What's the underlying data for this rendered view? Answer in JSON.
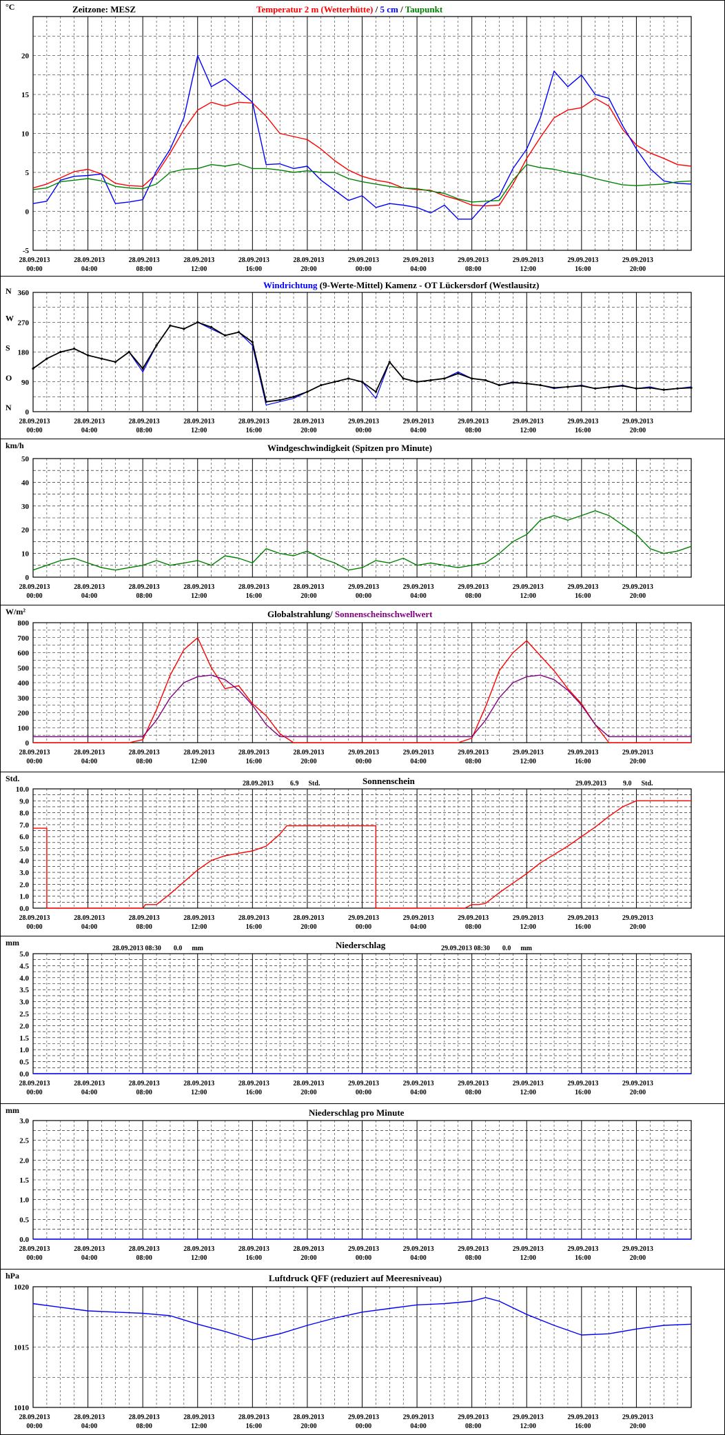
{
  "x_ticks": [
    {
      "date": "28.09.2013",
      "time": "00:00"
    },
    {
      "date": "28.09.2013",
      "time": "04:00"
    },
    {
      "date": "28.09.2013",
      "time": "08:00"
    },
    {
      "date": "28.09.2013",
      "time": "12:00"
    },
    {
      "date": "28.09.2013",
      "time": "16:00"
    },
    {
      "date": "28.09.2013",
      "time": "20:00"
    },
    {
      "date": "29.09.2013",
      "time": "00:00"
    },
    {
      "date": "29.09.2013",
      "time": "04:00"
    },
    {
      "date": "29.09.2013",
      "time": "08:00"
    },
    {
      "date": "29.09.2013",
      "time": "12:00"
    },
    {
      "date": "29.09.2013",
      "time": "16:00"
    },
    {
      "date": "29.09.2013",
      "time": "20:00"
    }
  ],
  "chart_data": [
    {
      "id": "temperature",
      "type": "line",
      "unit": "°C",
      "timezone_label": "Zeitzone: MESZ",
      "title_parts": [
        {
          "text": "Temperatur 2 m (Wetterhütte)",
          "color": "#ff0000"
        },
        {
          "text": "  /  ",
          "color": "#000000"
        },
        {
          "text": "5 cm",
          "color": "#0000ff"
        },
        {
          "text": " / ",
          "color": "#000000"
        },
        {
          "text": "Taupunkt",
          "color": "#008000"
        }
      ],
      "ylim": [
        -5,
        25
      ],
      "yticks": [
        -5,
        0,
        5,
        10,
        15,
        20
      ],
      "x_hours": [
        0,
        1,
        2,
        3,
        4,
        5,
        6,
        7,
        8,
        9,
        10,
        11,
        12,
        13,
        14,
        15,
        16,
        17,
        18,
        19,
        20,
        21,
        22,
        23,
        24,
        25,
        26,
        27,
        28,
        29,
        30,
        31,
        32,
        33,
        34,
        35,
        36,
        37,
        38,
        39,
        40,
        41,
        42,
        43,
        44,
        45,
        46,
        47,
        48
      ],
      "series": [
        {
          "name": "Temperatur 2 m (Wetterhütte)",
          "color": "#ff0000",
          "values": [
            3.0,
            3.5,
            4.3,
            5.1,
            5.4,
            4.8,
            3.6,
            3.3,
            3.2,
            4.8,
            7.5,
            10.5,
            13,
            14,
            13.5,
            14,
            13.9,
            12.2,
            10,
            9.6,
            9.2,
            8,
            6.5,
            5.3,
            4.5,
            4.0,
            3.7,
            3.0,
            2.8,
            2.7,
            2.0,
            1.5,
            0.8,
            0.7,
            0.8,
            3.5,
            6.8,
            9.5,
            12,
            13,
            13.3,
            14.5,
            13.5,
            10.5,
            8.5,
            7.5,
            6.8,
            6.0,
            5.8
          ]
        },
        {
          "name": "5 cm",
          "color": "#0000ff",
          "values": [
            1.0,
            1.3,
            4.0,
            4.5,
            4.6,
            4.8,
            1.0,
            1.2,
            1.5,
            5.2,
            8.0,
            12,
            20,
            16,
            17,
            15.5,
            14,
            6.0,
            6.1,
            5.5,
            5.8,
            4.0,
            2.7,
            1.4,
            2.0,
            0.5,
            1.0,
            0.8,
            0.5,
            -0.2,
            0.8,
            -1.0,
            -1.0,
            1.0,
            2.0,
            5.5,
            8.0,
            12,
            18,
            16,
            17.5,
            15,
            14.5,
            11,
            8,
            5.5,
            3.9,
            3.6,
            3.5
          ]
        },
        {
          "name": "Taupunkt",
          "color": "#008000",
          "values": [
            2.8,
            3.0,
            3.8,
            4.0,
            4.2,
            3.9,
            3.2,
            3.0,
            2.9,
            3.5,
            5.0,
            5.4,
            5.5,
            6.0,
            5.8,
            6.1,
            5.5,
            5.5,
            5.3,
            5.0,
            5.2,
            5.0,
            5.0,
            4.2,
            3.8,
            3.5,
            3.2,
            3.0,
            2.9,
            2.6,
            2.3,
            1.6,
            1.2,
            1.3,
            1.4,
            4.0,
            6.0,
            5.6,
            5.4,
            5.0,
            4.7,
            4.2,
            3.8,
            3.4,
            3.3,
            3.4,
            3.5,
            3.8,
            3.9
          ]
        }
      ]
    },
    {
      "id": "wind-direction",
      "type": "scatter",
      "title_parts": [
        {
          "text": "Windrichtung",
          "color": "#0000ff"
        },
        {
          "text": " (9-Werte-Mittel)",
          "color": "#000000"
        },
        {
          "text": "          Kamenz - OT Lückersdorf (Westlausitz)",
          "color": "#000000"
        }
      ],
      "ylim": [
        0,
        360
      ],
      "yticks": [
        0,
        90,
        180,
        270,
        360
      ],
      "compass_labels": [
        {
          "text": "N",
          "value": 360
        },
        {
          "text": "W",
          "value": 270
        },
        {
          "text": "S",
          "value": 180
        },
        {
          "text": "O",
          "value": 90
        },
        {
          "text": "N",
          "value": 0
        }
      ],
      "x_hours": [
        0,
        1,
        2,
        3,
        4,
        5,
        6,
        7,
        8,
        9,
        10,
        11,
        12,
        13,
        14,
        15,
        16,
        17,
        18,
        19,
        20,
        21,
        22,
        23,
        24,
        25,
        26,
        27,
        28,
        29,
        30,
        31,
        32,
        33,
        34,
        35,
        36,
        37,
        38,
        39,
        40,
        41,
        42,
        43,
        44,
        45,
        46,
        47,
        48
      ],
      "series": [
        {
          "name": "Windrichtung",
          "color": "#0000ff",
          "values": [
            130,
            160,
            180,
            190,
            170,
            160,
            150,
            180,
            120,
            200,
            260,
            250,
            270,
            250,
            230,
            240,
            200,
            20,
            30,
            40,
            60,
            80,
            90,
            100,
            90,
            40,
            150,
            100,
            90,
            95,
            100,
            120,
            100,
            95,
            80,
            90,
            85,
            80,
            70,
            75,
            80,
            70,
            75,
            80,
            70,
            75,
            65,
            70,
            75
          ]
        },
        {
          "name": "9-Werte-Mittel",
          "color": "#000000",
          "values": [
            130,
            160,
            180,
            190,
            170,
            160,
            150,
            180,
            130,
            200,
            260,
            250,
            270,
            255,
            230,
            240,
            210,
            30,
            35,
            45,
            60,
            80,
            90,
            100,
            90,
            60,
            150,
            100,
            90,
            95,
            100,
            115,
            100,
            95,
            80,
            88,
            85,
            80,
            72,
            75,
            78,
            70,
            74,
            78,
            70,
            72,
            66,
            70,
            72
          ]
        }
      ]
    },
    {
      "id": "wind-speed",
      "type": "line",
      "unit": "km/h",
      "title_parts": [
        {
          "text": "Windgeschwindigkeit (Spitzen pro Minute)",
          "color": "#000000"
        }
      ],
      "ylim": [
        0,
        50
      ],
      "yticks": [
        0,
        10,
        20,
        30,
        40,
        50
      ],
      "x_hours": [
        0,
        1,
        2,
        3,
        4,
        5,
        6,
        7,
        8,
        9,
        10,
        11,
        12,
        13,
        14,
        15,
        16,
        17,
        18,
        19,
        20,
        21,
        22,
        23,
        24,
        25,
        26,
        27,
        28,
        29,
        30,
        31,
        32,
        33,
        34,
        35,
        36,
        37,
        38,
        39,
        40,
        41,
        42,
        43,
        44,
        45,
        46,
        47,
        48
      ],
      "series": [
        {
          "name": "Windgeschwindigkeit",
          "color": "#008000",
          "values": [
            3,
            5,
            7,
            8,
            6,
            4,
            3,
            4,
            5,
            7,
            5,
            6,
            7,
            5,
            9,
            8,
            6,
            12,
            10,
            9,
            11,
            8,
            6,
            3,
            4,
            7,
            6,
            8,
            5,
            6,
            5,
            4,
            5,
            6,
            10,
            15,
            18,
            24,
            26,
            24,
            26,
            28,
            26,
            22,
            18,
            12,
            10,
            11,
            13
          ]
        }
      ]
    },
    {
      "id": "radiation",
      "type": "line",
      "unit": "W/m²",
      "title_parts": [
        {
          "text": "Globalstrahlung",
          "color": "#000000"
        },
        {
          "text": "/ ",
          "color": "#000000"
        },
        {
          "text": "Sonnenscheinschwellwert",
          "color": "#800080"
        }
      ],
      "ylim": [
        0,
        800
      ],
      "yticks": [
        0,
        100,
        200,
        300,
        400,
        500,
        600,
        700,
        800
      ],
      "x_hours": [
        0,
        1,
        2,
        3,
        4,
        5,
        6,
        7,
        8,
        9,
        10,
        11,
        12,
        13,
        14,
        15,
        16,
        17,
        18,
        19,
        20,
        21,
        22,
        23,
        24,
        25,
        26,
        27,
        28,
        29,
        30,
        31,
        32,
        33,
        34,
        35,
        36,
        37,
        38,
        39,
        40,
        41,
        42,
        43,
        44,
        45,
        46,
        47,
        48
      ],
      "series": [
        {
          "name": "Globalstrahlung",
          "color": "#ff0000",
          "values": [
            0,
            0,
            0,
            0,
            0,
            0,
            0,
            0,
            20,
            220,
            450,
            620,
            700,
            500,
            360,
            380,
            260,
            180,
            60,
            0,
            0,
            0,
            0,
            0,
            0,
            0,
            0,
            0,
            0,
            0,
            0,
            0,
            30,
            240,
            480,
            600,
            680,
            580,
            480,
            360,
            260,
            120,
            0,
            0,
            0,
            0,
            0,
            0,
            0
          ]
        },
        {
          "name": "Sonnenscheinschwellwert",
          "color": "#800080",
          "values": [
            40,
            40,
            40,
            40,
            40,
            40,
            40,
            40,
            40,
            150,
            300,
            400,
            440,
            450,
            420,
            350,
            250,
            120,
            40,
            40,
            40,
            40,
            40,
            40,
            40,
            40,
            40,
            40,
            40,
            40,
            40,
            40,
            40,
            150,
            300,
            400,
            440,
            450,
            420,
            350,
            250,
            120,
            40,
            40,
            40,
            40,
            40,
            40,
            40
          ]
        }
      ]
    },
    {
      "id": "sunshine",
      "type": "line",
      "unit": "Std.",
      "title_parts": [
        {
          "text": "Sonnenschein",
          "color": "#000000"
        }
      ],
      "summaries": [
        {
          "date": "28.09.2013",
          "value": "6.9",
          "unit": "Std."
        },
        {
          "date": "29.09.2013",
          "value": "9.0",
          "unit": "Std."
        }
      ],
      "ylim": [
        0,
        10
      ],
      "yticks": [
        0.0,
        1.0,
        2.0,
        3.0,
        4.0,
        5.0,
        6.0,
        7.0,
        8.0,
        9.0,
        10.0
      ],
      "x_hours": [
        0,
        1,
        1,
        6,
        7.5,
        8,
        8.2,
        9,
        10,
        11,
        12,
        13,
        14,
        15,
        16,
        17,
        18,
        18.5,
        19,
        20,
        21,
        22,
        23,
        24,
        25,
        25,
        26,
        29,
        31,
        31.5,
        32,
        32.5,
        33,
        34,
        35,
        36,
        37,
        38,
        39,
        40,
        41,
        42,
        43,
        44,
        45,
        46,
        47,
        48
      ],
      "series": [
        {
          "name": "Sonnenschein",
          "color": "#ff0000",
          "values": [
            6.7,
            6.7,
            0,
            0,
            0,
            0,
            0.3,
            0.3,
            1.2,
            2.2,
            3.2,
            4.0,
            4.4,
            4.6,
            4.8,
            5.2,
            6.2,
            6.9,
            6.9,
            6.9,
            6.9,
            6.9,
            6.9,
            6.9,
            6.9,
            0,
            0,
            0,
            0,
            0,
            0.3,
            0.3,
            0.4,
            1.3,
            2.1,
            2.9,
            3.8,
            4.5,
            5.2,
            6.0,
            6.8,
            7.7,
            8.5,
            9.0,
            9.0,
            9.0,
            9.0,
            9.0
          ]
        }
      ]
    },
    {
      "id": "precipitation",
      "type": "line",
      "unit": "mm",
      "title_parts": [
        {
          "text": "Niederschlag",
          "color": "#000000"
        }
      ],
      "summaries": [
        {
          "date": "28.09.2013 08:30",
          "value": "0.0",
          "unit": "mm"
        },
        {
          "date": "29.09.2013 08:30",
          "value": "0.0",
          "unit": "mm"
        }
      ],
      "ylim": [
        0,
        5
      ],
      "yticks": [
        0.0,
        0.5,
        1.0,
        1.5,
        2.0,
        2.5,
        3.0,
        3.5,
        4.0,
        4.5,
        5.0
      ],
      "x_hours": [
        0,
        48
      ],
      "series": [
        {
          "name": "Niederschlag",
          "color": "#0000ff",
          "values": [
            0,
            0
          ]
        }
      ]
    },
    {
      "id": "precipitation-minute",
      "type": "line",
      "unit": "mm",
      "title_parts": [
        {
          "text": "Niederschlag pro Minute",
          "color": "#000000"
        }
      ],
      "ylim": [
        0,
        3
      ],
      "yticks": [
        0.0,
        0.5,
        1.0,
        1.5,
        2.0,
        2.5,
        3.0
      ],
      "x_hours": [
        0,
        48
      ],
      "series": [
        {
          "name": "Niederschlag pro Minute",
          "color": "#0000ff",
          "values": [
            0,
            0
          ]
        }
      ]
    },
    {
      "id": "pressure",
      "type": "line",
      "unit": "hPa",
      "title_parts": [
        {
          "text": "Luftdruck QFF (reduziert auf Meeresniveau)",
          "color": "#000000"
        }
      ],
      "ylim": [
        1010,
        1020
      ],
      "yticks": [
        1010,
        1015,
        1020
      ],
      "x_hours": [
        0,
        2,
        4,
        6,
        8,
        10,
        12,
        14,
        16,
        18,
        20,
        22,
        24,
        26,
        28,
        30,
        32,
        33,
        34,
        36,
        38,
        40,
        42,
        44,
        46,
        48
      ],
      "series": [
        {
          "name": "Luftdruck QFF",
          "color": "#0000ff",
          "values": [
            1018.6,
            1018.3,
            1018.0,
            1017.9,
            1017.8,
            1017.6,
            1016.9,
            1016.3,
            1015.6,
            1016.1,
            1016.8,
            1017.4,
            1017.9,
            1018.2,
            1018.5,
            1018.6,
            1018.8,
            1019.1,
            1018.8,
            1017.7,
            1016.8,
            1016.0,
            1016.1,
            1016.5,
            1016.8,
            1016.9
          ]
        }
      ]
    }
  ]
}
